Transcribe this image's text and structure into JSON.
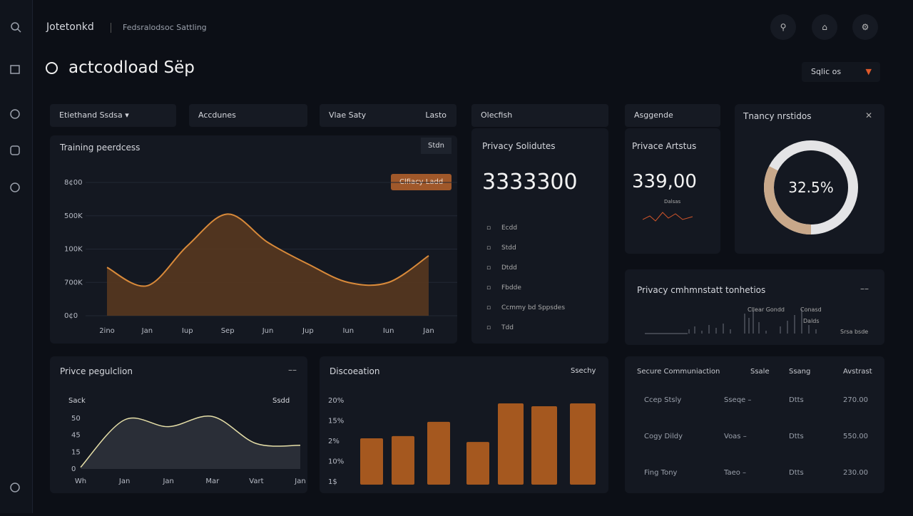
{
  "header": {
    "brand": "Jotetonkd",
    "breadcrumb": "Fedsralodsoc Sattling"
  },
  "page_title": "actcodload Sëp",
  "select": "Sqlic os",
  "filters": [
    "Etiethand Ssdsa",
    "Accdunes",
    "Vlae Saty",
    "Lasto",
    "Olecfish",
    "Asggende"
  ],
  "training": {
    "title": "Training peerdcess",
    "button": "Stdn",
    "badge": "Clfiacy Ladd",
    "ylim": [
      0,
      4
    ],
    "yticks": [
      {
        "value": 0,
        "label": "0¢0"
      },
      {
        "value": 1,
        "label": "700K"
      },
      {
        "value": 2,
        "label": "100K"
      },
      {
        "value": 3,
        "label": "500K"
      },
      {
        "value": 4,
        "label": "8¢00"
      }
    ],
    "categories": [
      "2ino",
      "Jan",
      "Iup",
      "Sep",
      "Jun",
      "Jup",
      "Iun",
      "Iun",
      "Jan"
    ],
    "values": [
      1.45,
      0.9,
      2.1,
      3.05,
      2.2,
      1.55,
      1.0,
      1.0,
      1.8
    ]
  },
  "privacy_solutions": {
    "title": "Privacy Solidutes",
    "value": "3333300",
    "items": [
      "Ecdd",
      "Stdd",
      "Dtdd",
      "Fbdde",
      "Ccmmy bd Sppsdes",
      "Tdd"
    ]
  },
  "privacy_status": {
    "title": "Privace Artstus",
    "value": "339,00",
    "mini_label": "Dalsas"
  },
  "donut": {
    "title": "Tnancy nrstidos",
    "value": 32.5,
    "label": "32.5%"
  },
  "communication": {
    "title": "Privacy cmhmnstatt tonhetios",
    "legend": [
      "Cllear Gondd",
      "Conasd",
      "Dalds",
      "Srsa bsde"
    ]
  },
  "population": {
    "title": "Privce pegulclion",
    "left_label": "Sack",
    "right_label": "Ssdd",
    "ylim": [
      0,
      4
    ],
    "yticks": [
      {
        "value": 0,
        "label": "0"
      },
      {
        "value": 1,
        "label": "15"
      },
      {
        "value": 2,
        "label": "45"
      },
      {
        "value": 3,
        "label": "50"
      }
    ],
    "categories": [
      "Wh",
      "Jan",
      "Jan",
      "Mar",
      "Vart",
      "Jan"
    ],
    "values": [
      0.1,
      2.9,
      2.5,
      3.1,
      1.5,
      1.4
    ]
  },
  "discoeation": {
    "title": "Discoeation",
    "action": "Ssechy",
    "ylim": [
      0,
      4
    ],
    "yticks": [
      {
        "value": 0,
        "label": "1$"
      },
      {
        "value": 1,
        "label": "10%"
      },
      {
        "value": 2,
        "label": "2%"
      },
      {
        "value": 3,
        "label": "15%"
      },
      {
        "value": 4,
        "label": "20%"
      }
    ],
    "values": [
      2.14,
      2.25,
      2.95,
      1.96,
      3.86,
      3.72,
      3.86
    ]
  },
  "table": {
    "columns": [
      "Secure Communiaction",
      "Ssale",
      "Ssang",
      "Avstrast"
    ],
    "rows": [
      [
        "Ccep Stsly",
        "Sseqe –",
        "Dtts",
        "270.00"
      ],
      [
        "Cogy Dildy",
        "Voas –",
        "Dtts",
        "550.00"
      ],
      [
        "Fing Tony",
        "Taeo –",
        "Dtts",
        "230.00"
      ]
    ]
  }
}
